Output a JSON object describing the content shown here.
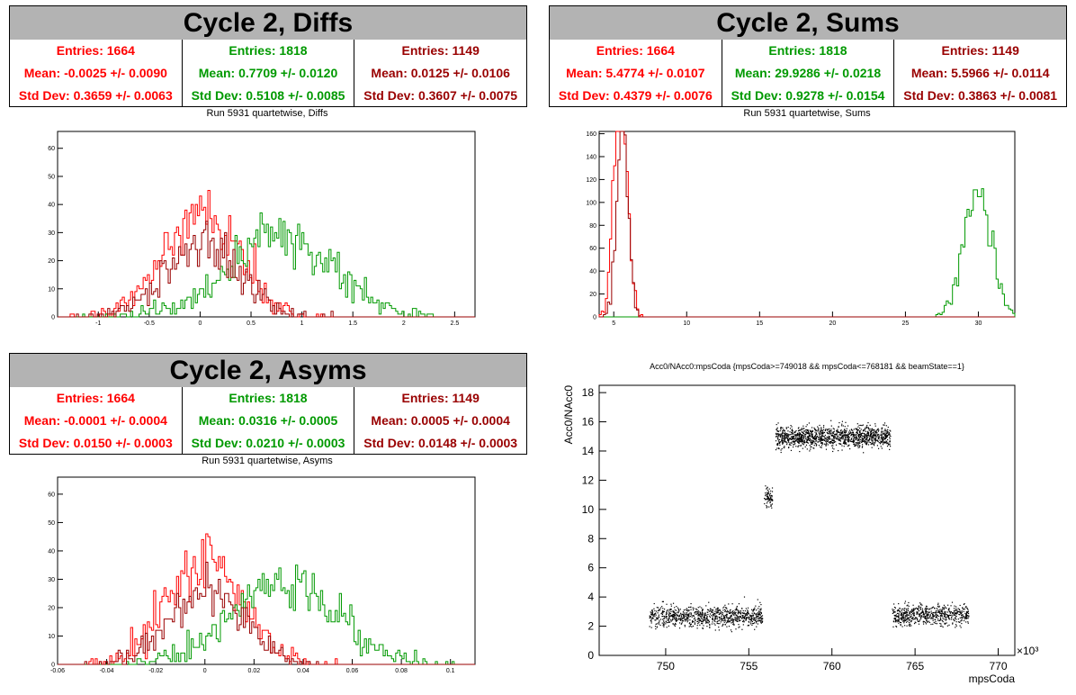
{
  "colors": {
    "red": "#ff0000",
    "green": "#009900",
    "darkred": "#990000"
  },
  "panels": [
    {
      "title": "Cycle 2, Diffs",
      "subtitle": "Run 5931 quartetwise, Diffs",
      "stats": [
        {
          "entries": "Entries: 1664",
          "mean": "Mean: -0.0025 +/- 0.0090",
          "std": "Std Dev: 0.3659 +/- 0.0063"
        },
        {
          "entries": "Entries: 1818",
          "mean": "Mean: 0.7709 +/- 0.0120",
          "std": "Std Dev: 0.5108 +/- 0.0085"
        },
        {
          "entries": "Entries: 1149",
          "mean": "Mean: 0.0125 +/- 0.0106",
          "std": "Std Dev: 0.3607 +/- 0.0075"
        }
      ]
    },
    {
      "title": "Cycle 2, Sums",
      "subtitle": "Run 5931 quartetwise, Sums",
      "stats": [
        {
          "entries": "Entries: 1664",
          "mean": "Mean: 5.4774 +/- 0.0107",
          "std": "Std Dev: 0.4379 +/- 0.0076"
        },
        {
          "entries": "Entries: 1818",
          "mean": "Mean: 29.9286 +/- 0.0218",
          "std": "Std Dev: 0.9278 +/- 0.0154"
        },
        {
          "entries": "Entries: 1149",
          "mean": "Mean: 5.5966 +/- 0.0114",
          "std": "Std Dev: 0.3863 +/- 0.0081"
        }
      ]
    },
    {
      "title": "Cycle 2, Asyms",
      "subtitle": "Run 5931 quartetwise, Asyms",
      "stats": [
        {
          "entries": "Entries: 1664",
          "mean": "Mean: -0.0001 +/- 0.0004",
          "std": "Std Dev: 0.0150 +/- 0.0003"
        },
        {
          "entries": "Entries: 1818",
          "mean": "Mean: 0.0316 +/- 0.0005",
          "std": "Std Dev: 0.0210 +/- 0.0003"
        },
        {
          "entries": "Entries: 1149",
          "mean": "Mean: 0.0005 +/- 0.0004",
          "std": "Std Dev: 0.0148 +/- 0.0003"
        }
      ]
    },
    {
      "title": "Acc0/NAcc0:mpsCoda {mpsCoda>=749018 && mpsCoda<=768181 && beamState==1}"
    }
  ],
  "chart_data": [
    {
      "type": "histogram",
      "xlim": [
        -1.4,
        2.7
      ],
      "ylim": [
        0,
        66
      ],
      "xticks": [
        "-1",
        "-0.5",
        "0",
        "0.5",
        "1",
        "1.5",
        "2",
        "2.5"
      ],
      "yticks": [
        "0",
        "10",
        "20",
        "30",
        "40",
        "50",
        "60"
      ],
      "series": [
        {
          "color": "red",
          "mean": -0.0025,
          "std": 0.3659,
          "entries": 1664
        },
        {
          "color": "green",
          "mean": 0.7709,
          "std": 0.5108,
          "entries": 1818
        },
        {
          "color": "darkred",
          "mean": 0.0125,
          "std": 0.3607,
          "entries": 1149
        }
      ]
    },
    {
      "type": "histogram",
      "xlim": [
        4,
        32.5
      ],
      "ylim": [
        0,
        162
      ],
      "xticks": [
        "5",
        "10",
        "15",
        "20",
        "25",
        "30"
      ],
      "yticks": [
        "0",
        "20",
        "40",
        "60",
        "80",
        "100",
        "120",
        "140",
        "160"
      ],
      "series": [
        {
          "color": "red",
          "mean": 5.4774,
          "std": 0.4379,
          "entries": 1664
        },
        {
          "color": "green",
          "mean": 29.9286,
          "std": 0.9278,
          "entries": 1818
        },
        {
          "color": "darkred",
          "mean": 5.5966,
          "std": 0.3863,
          "entries": 1149
        }
      ]
    },
    {
      "type": "histogram",
      "xlim": [
        -0.06,
        0.11
      ],
      "ylim": [
        0,
        66
      ],
      "xticks": [
        "-0.06",
        "-0.04",
        "-0.02",
        "0",
        "0.02",
        "0.04",
        "0.06",
        "0.08",
        "0.1"
      ],
      "yticks": [
        "0",
        "10",
        "20",
        "30",
        "40",
        "50",
        "60"
      ],
      "series": [
        {
          "color": "red",
          "mean": -0.0001,
          "std": 0.015,
          "entries": 1664
        },
        {
          "color": "green",
          "mean": 0.0316,
          "std": 0.021,
          "entries": 1818
        },
        {
          "color": "darkred",
          "mean": 0.0005,
          "std": 0.0148,
          "entries": 1149
        }
      ]
    },
    {
      "type": "scatter",
      "xlim": [
        746,
        771
      ],
      "ylim": [
        0,
        18.5
      ],
      "xlabel": "mpsCoda",
      "ylabel": "Acc0/NAcc0",
      "xexp": "×10³",
      "xticks": [
        "750",
        "755",
        "760",
        "765",
        "770"
      ],
      "yticks": [
        "0",
        "2",
        "4",
        "6",
        "8",
        "10",
        "12",
        "14",
        "16",
        "18"
      ],
      "clusters": [
        {
          "x": [
            749,
            755.8
          ],
          "y": 2.7,
          "n": 900
        },
        {
          "x": [
            756.6,
            763.5
          ],
          "y": 15.0,
          "n": 1300
        },
        {
          "x": [
            763.6,
            768.2
          ],
          "y": 2.8,
          "n": 650
        },
        {
          "x": [
            755.9,
            756.4
          ],
          "y": 10.8,
          "n": 80
        }
      ]
    }
  ]
}
